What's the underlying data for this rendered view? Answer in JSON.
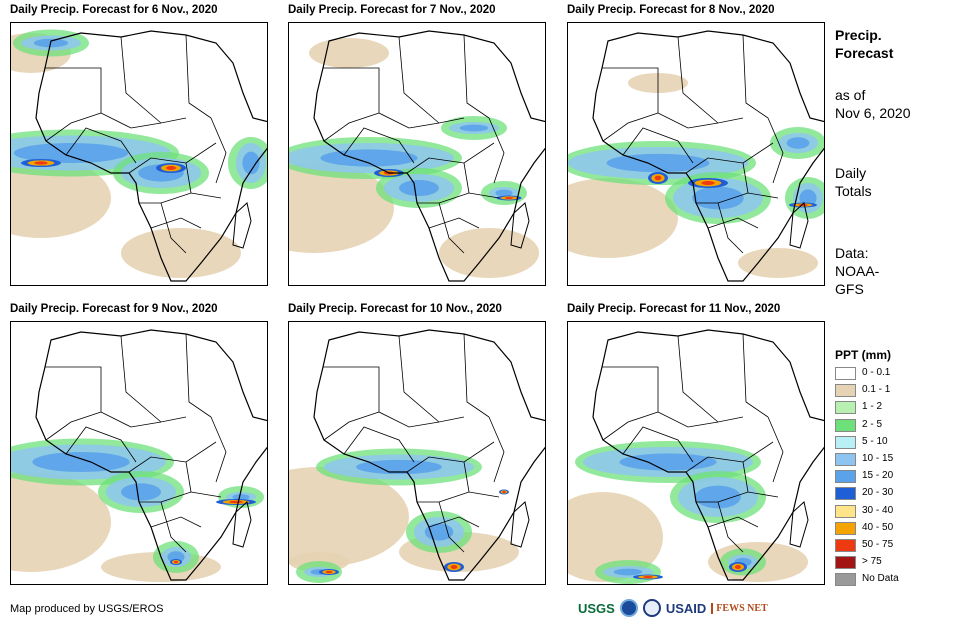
{
  "panels": [
    {
      "title": "Daily Precip. Forecast for 6 Nov., 2020",
      "variant": 0
    },
    {
      "title": "Daily Precip. Forecast for 7 Nov., 2020",
      "variant": 1
    },
    {
      "title": "Daily Precip. Forecast for 8 Nov., 2020",
      "variant": 2
    },
    {
      "title": "Daily Precip. Forecast for 9 Nov., 2020",
      "variant": 3
    },
    {
      "title": "Daily Precip. Forecast for 10 Nov., 2020",
      "variant": 4
    },
    {
      "title": "Daily Precip. Forecast for 11 Nov., 2020",
      "variant": 5
    }
  ],
  "side": {
    "heading_line1": "Precip.",
    "heading_line2": "Forecast",
    "asof_line1": "as of",
    "asof_line2": "Nov 6, 2020",
    "totals_line1": "Daily",
    "totals_line2": "Totals",
    "data_line1": "Data:",
    "data_line2": "NOAA-",
    "data_line3": "GFS"
  },
  "legend": {
    "title": "PPT (mm)",
    "items": [
      {
        "label": "0 - 0.1",
        "color": "#ffffff"
      },
      {
        "label": "0.1 - 1",
        "color": "#e6d3b3"
      },
      {
        "label": "1 - 2",
        "color": "#b7f0b1"
      },
      {
        "label": "2 - 5",
        "color": "#6ee07a"
      },
      {
        "label": "5 - 10",
        "color": "#b9f0f5"
      },
      {
        "label": "10 - 15",
        "color": "#8ec5f0"
      },
      {
        "label": "15 - 20",
        "color": "#5aa2ea"
      },
      {
        "label": "20 - 30",
        "color": "#1f5fd6"
      },
      {
        "label": "30 - 40",
        "color": "#ffe58a"
      },
      {
        "label": "40 - 50",
        "color": "#f5a300"
      },
      {
        "label": "50 - 75",
        "color": "#ee3a10"
      },
      {
        "label": "> 75",
        "color": "#a31515"
      },
      {
        "label": "No Data",
        "color": "#9a9a9a"
      }
    ]
  },
  "credit": "Map produced by USGS/EROS",
  "logos": {
    "usgs": "USGS",
    "usaid": "USAID",
    "fews": "FEWS NET"
  }
}
